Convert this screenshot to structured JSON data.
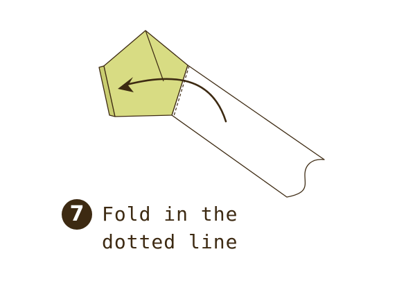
{
  "step": {
    "number": "7",
    "badge_color": "#3d2a12",
    "number_color": "#ffffff"
  },
  "instruction": {
    "line1": "Fold in the",
    "line2": "dotted line",
    "color": "#3d2a12"
  },
  "diagram": {
    "paper_color": "#d8dc83",
    "paper_shadow_color": "#c9cd70",
    "strip_color": "#ffffff",
    "outline_color": "#3d2a12",
    "fold_line_style": "dotted",
    "arrow_direction": "left"
  }
}
